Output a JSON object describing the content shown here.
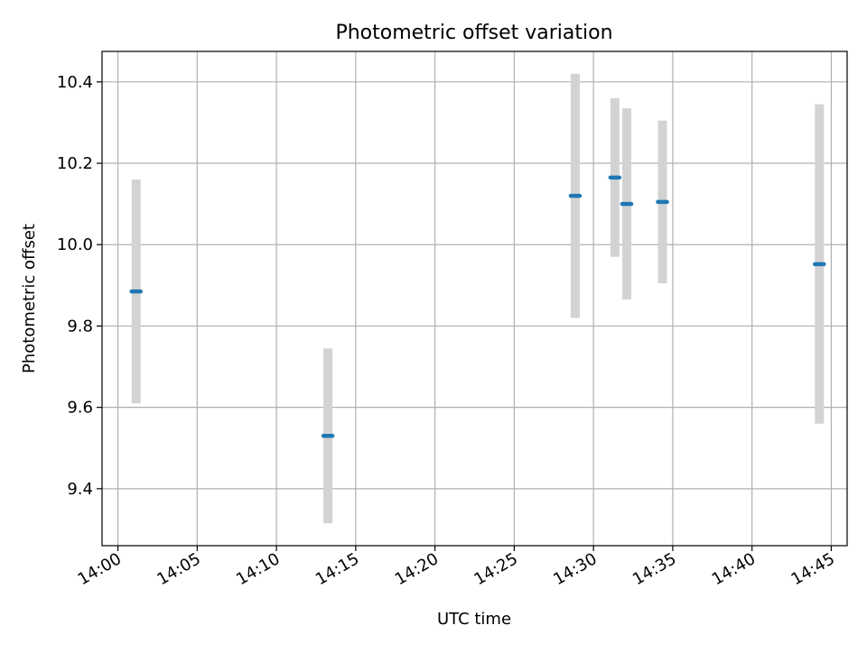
{
  "chart_data": {
    "type": "scatter",
    "title": "Photometric offset variation",
    "xlabel": "UTC time",
    "ylabel": "Photometric offset",
    "xlim": [
      "13:59",
      "14:46"
    ],
    "ylim": [
      9.26,
      10.475
    ],
    "x_ticks": [
      "14:00",
      "14:05",
      "14:10",
      "14:15",
      "14:20",
      "14:25",
      "14:30",
      "14:35",
      "14:40",
      "14:45"
    ],
    "y_ticks": [
      9.4,
      9.6,
      9.8,
      10.0,
      10.2,
      10.4
    ],
    "y_tick_labels": [
      "9.4",
      "9.6",
      "9.8",
      "10.0",
      "10.2",
      "10.4"
    ],
    "grid": true,
    "points": [
      {
        "x": "14:01:09",
        "y": 9.885,
        "y_low": 9.61,
        "y_high": 10.16
      },
      {
        "x": "14:13:15",
        "y": 9.53,
        "y_low": 9.315,
        "y_high": 9.745
      },
      {
        "x": "14:28:51",
        "y": 10.12,
        "y_low": 9.82,
        "y_high": 10.42
      },
      {
        "x": "14:31:21",
        "y": 10.165,
        "y_low": 9.97,
        "y_high": 10.36
      },
      {
        "x": "14:32:06",
        "y": 10.1,
        "y_low": 9.865,
        "y_high": 10.335
      },
      {
        "x": "14:34:21",
        "y": 10.105,
        "y_low": 9.905,
        "y_high": 10.305
      },
      {
        "x": "14:44:15",
        "y": 9.952,
        "y_low": 9.56,
        "y_high": 10.345
      }
    ],
    "colors": {
      "marker": "#1f77b4",
      "errorbar": "#d3d3d3",
      "grid": "#b0b0b0",
      "axes": "#000000"
    }
  }
}
